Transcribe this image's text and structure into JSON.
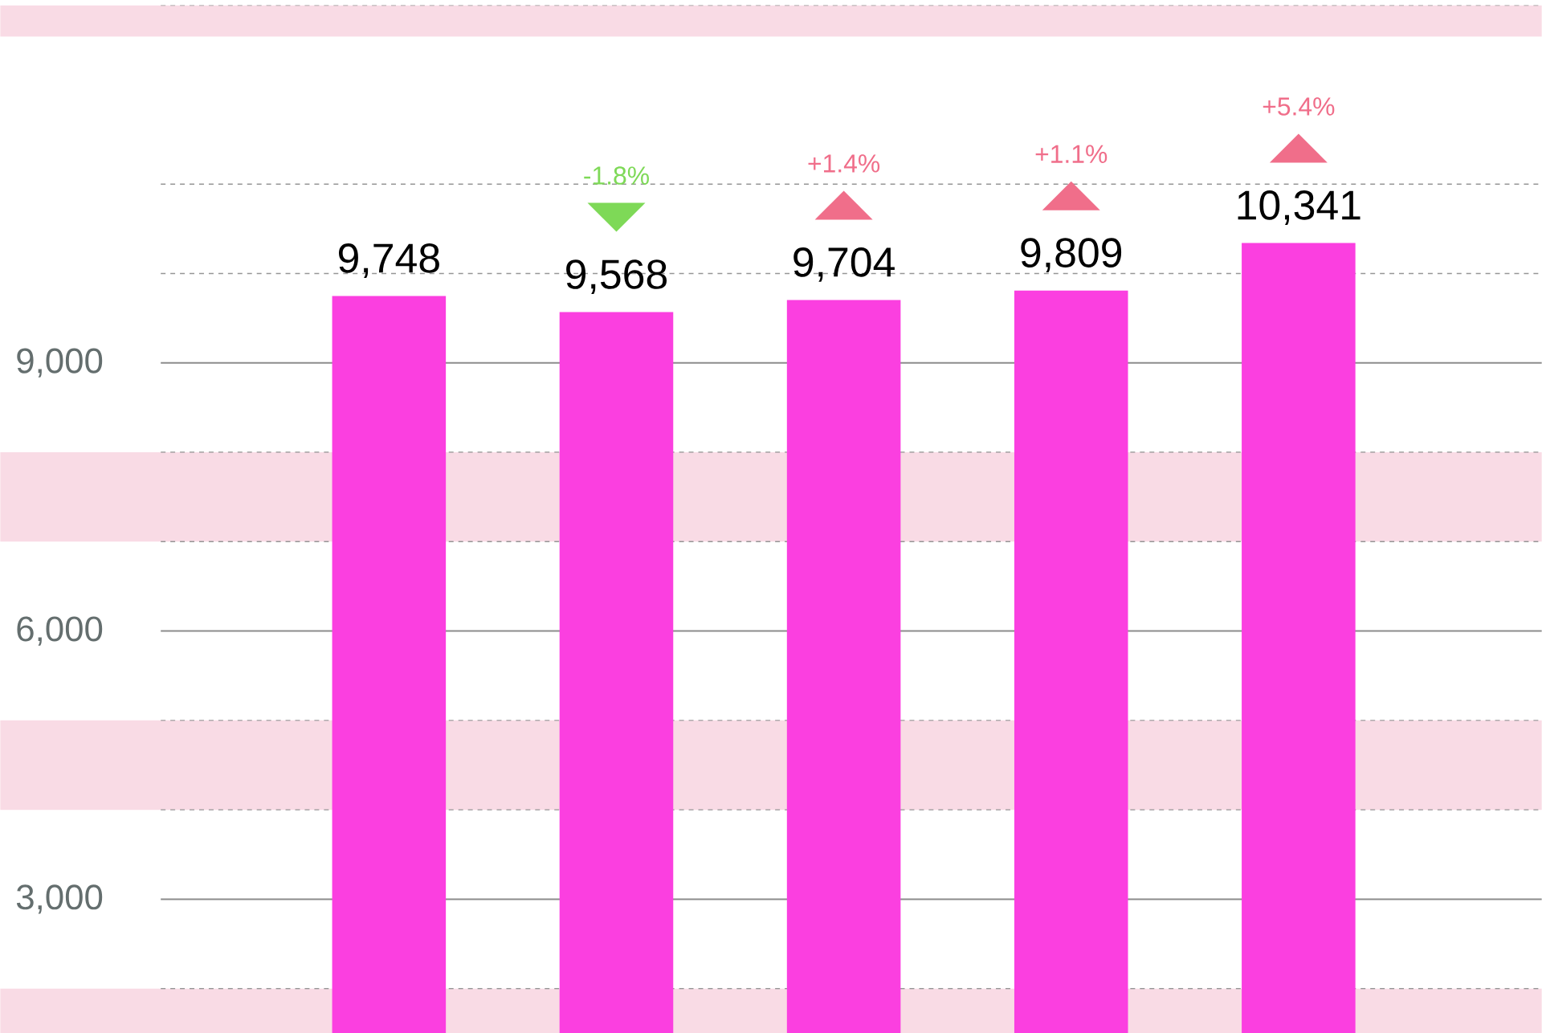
{
  "chart_data": {
    "type": "bar",
    "categories": [
      null,
      null,
      null,
      null,
      null
    ],
    "values": [
      9748,
      9568,
      9704,
      9809,
      10341
    ],
    "value_labels": [
      "9,748",
      "9,568",
      "9,704",
      "9,809",
      "10,341"
    ],
    "color": "#fb3fe0",
    "ylim": [
      1500,
      13000
    ],
    "yticks": [
      {
        "value": 2000,
        "label": null
      },
      {
        "value": 3000,
        "label": "3,000"
      },
      {
        "value": 4000,
        "label": null
      },
      {
        "value": 5000,
        "label": null
      },
      {
        "value": 6000,
        "label": "6,000"
      },
      {
        "value": 7000,
        "label": null
      },
      {
        "value": 8000,
        "label": null
      },
      {
        "value": 9000,
        "label": "9,000"
      },
      {
        "value": 10000,
        "label": null
      },
      {
        "value": 11000,
        "label": null
      },
      {
        "value": 13000,
        "label": null
      }
    ],
    "grid": true,
    "bands": [
      {
        "axis": "y",
        "from": 1000,
        "to": 2000,
        "color": "#f9dbe5"
      },
      {
        "axis": "y",
        "from": 4000,
        "to": 5000,
        "color": "#f9dbe5"
      },
      {
        "axis": "y",
        "from": 7000,
        "to": 8000,
        "color": "#f9dbe5"
      },
      {
        "axis": "y",
        "from": 12650,
        "to": 13000,
        "color": "#f9dbe5"
      }
    ],
    "annotations": [
      "-1.8%",
      "+1.4%",
      "+1.1%",
      "+5.4%"
    ]
  }
}
